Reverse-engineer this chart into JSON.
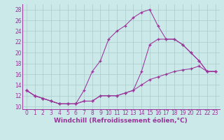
{
  "background_color": "#cce9e9",
  "line_color": "#993399",
  "grid_color": "#aacccc",
  "xlabel": "Windchill (Refroidissement éolien,°C)",
  "xlabel_fontsize": 6.5,
  "tick_fontsize": 5.5,
  "ylim": [
    9.5,
    29
  ],
  "xlim": [
    -0.5,
    23.5
  ],
  "yticks": [
    10,
    12,
    14,
    16,
    18,
    20,
    22,
    24,
    26,
    28
  ],
  "xticks": [
    0,
    1,
    2,
    3,
    4,
    5,
    6,
    7,
    8,
    9,
    10,
    11,
    12,
    13,
    14,
    15,
    16,
    17,
    18,
    19,
    20,
    21,
    22,
    23
  ],
  "curve_sharp_x": [
    0,
    1,
    2,
    3,
    4,
    5,
    6,
    7,
    8,
    9,
    10,
    11,
    12,
    13,
    14,
    15,
    16,
    17,
    18,
    19,
    20,
    21,
    22,
    23
  ],
  "curve_sharp_y": [
    13,
    12,
    11.5,
    11,
    10.5,
    10.5,
    10.5,
    13,
    16.5,
    18.5,
    22.5,
    24,
    25,
    26.5,
    27.5,
    28,
    25,
    22.5,
    22.5,
    21.5,
    20,
    18.5,
    16.5,
    16.5
  ],
  "curve_mid_x": [
    0,
    1,
    2,
    3,
    4,
    5,
    6,
    7,
    8,
    9,
    10,
    11,
    12,
    13,
    14,
    15,
    16,
    17,
    18,
    19,
    20,
    21,
    22,
    23
  ],
  "curve_mid_y": [
    13,
    12,
    11.5,
    11,
    10.5,
    10.5,
    10.5,
    11,
    11,
    12,
    12,
    12,
    12.5,
    13,
    16.5,
    21.5,
    22.5,
    22.5,
    22.5,
    21.5,
    20,
    18.5,
    16.5,
    16.5
  ],
  "curve_flat_x": [
    0,
    1,
    2,
    3,
    4,
    5,
    6,
    7,
    8,
    9,
    10,
    11,
    12,
    13,
    14,
    15,
    16,
    17,
    18,
    19,
    20,
    21,
    22,
    23
  ],
  "curve_flat_y": [
    13,
    12,
    11.5,
    11,
    10.5,
    10.5,
    10.5,
    11,
    11,
    12,
    12,
    12,
    12.5,
    13,
    14,
    15,
    15.5,
    16,
    16.5,
    16.8,
    17,
    17.5,
    16.5,
    16.5
  ]
}
